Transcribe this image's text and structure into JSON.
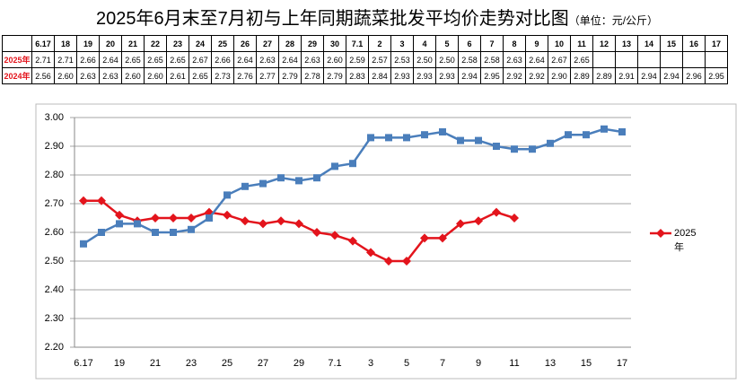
{
  "title": "2025年6月末至7月初与上年同期蔬菜批发平均价走势对比图",
  "unit": "（单位：元/公斤）",
  "table": {
    "header": [
      "6.17",
      "18",
      "19",
      "20",
      "21",
      "22",
      "23",
      "24",
      "25",
      "26",
      "27",
      "28",
      "29",
      "30",
      "7.1",
      "2",
      "3",
      "4",
      "5",
      "6",
      "7",
      "8",
      "9",
      "10",
      "11",
      "12",
      "13",
      "14",
      "15",
      "16",
      "17"
    ],
    "rows": [
      {
        "label": "2025年",
        "cells": [
          "2.71",
          "2.71",
          "2.66",
          "2.64",
          "2.65",
          "2.65",
          "2.65",
          "2.67",
          "2.66",
          "2.64",
          "2.63",
          "2.64",
          "2.63",
          "2.60",
          "2.59",
          "2.57",
          "2.53",
          "2.50",
          "2.50",
          "2.58",
          "2.58",
          "2.63",
          "2.64",
          "2.67",
          "2.65"
        ]
      },
      {
        "label": "2024年",
        "cells": [
          "2.56",
          "2.60",
          "2.63",
          "2.63",
          "2.60",
          "2.60",
          "2.61",
          "2.65",
          "2.73",
          "2.76",
          "2.77",
          "2.79",
          "2.78",
          "2.79",
          "2.83",
          "2.84",
          "2.93",
          "2.93",
          "2.93",
          "2.94",
          "2.95",
          "2.92",
          "2.92",
          "2.90",
          "2.89",
          "2.89",
          "2.91",
          "2.94",
          "2.94",
          "2.96",
          "2.95"
        ]
      }
    ]
  },
  "chart_data": {
    "type": "line",
    "categories": [
      "6.17",
      null,
      "19",
      null,
      "21",
      null,
      "23",
      null,
      "25",
      null,
      "27",
      null,
      "29",
      null,
      "7.1",
      null,
      "3",
      null,
      "5",
      null,
      "7",
      null,
      "9",
      null,
      "11",
      null,
      "13",
      null,
      "15",
      null,
      "17"
    ],
    "series": [
      {
        "name": "2025年",
        "color": "#e3141c",
        "marker": "diamond",
        "values": [
          2.71,
          2.71,
          2.66,
          2.64,
          2.65,
          2.65,
          2.65,
          2.67,
          2.66,
          2.64,
          2.63,
          2.64,
          2.63,
          2.6,
          2.59,
          2.57,
          2.53,
          2.5,
          2.5,
          2.58,
          2.58,
          2.63,
          2.64,
          2.67,
          2.65,
          null,
          null,
          null,
          null,
          null,
          null
        ]
      },
      {
        "color": "#4a7ebb",
        "marker": "square",
        "values": [
          2.56,
          2.6,
          2.63,
          2.63,
          2.6,
          2.6,
          2.61,
          2.65,
          2.73,
          2.76,
          2.77,
          2.79,
          2.78,
          2.79,
          2.83,
          2.84,
          2.93,
          2.93,
          2.93,
          2.94,
          2.95,
          2.92,
          2.92,
          2.9,
          2.89,
          2.89,
          2.91,
          2.94,
          2.94,
          2.96,
          2.95
        ]
      }
    ],
    "ylim": [
      2.2,
      3.0
    ],
    "yticks": [
      {
        "value": 2.2,
        "label": "2.20"
      },
      {
        "value": 2.3,
        "label": "2.30"
      },
      {
        "value": 2.4,
        "label": "2.40"
      },
      {
        "value": 2.5,
        "label": "2.50"
      },
      {
        "value": 2.6,
        "label": "2.60"
      },
      {
        "value": 2.7,
        "label": "2.70"
      },
      {
        "value": 2.8,
        "label": "2.80"
      },
      {
        "value": 2.9,
        "label": "2.90"
      },
      {
        "value": 3.0,
        "label": "3.00"
      }
    ],
    "grid": true,
    "legend": "right"
  }
}
